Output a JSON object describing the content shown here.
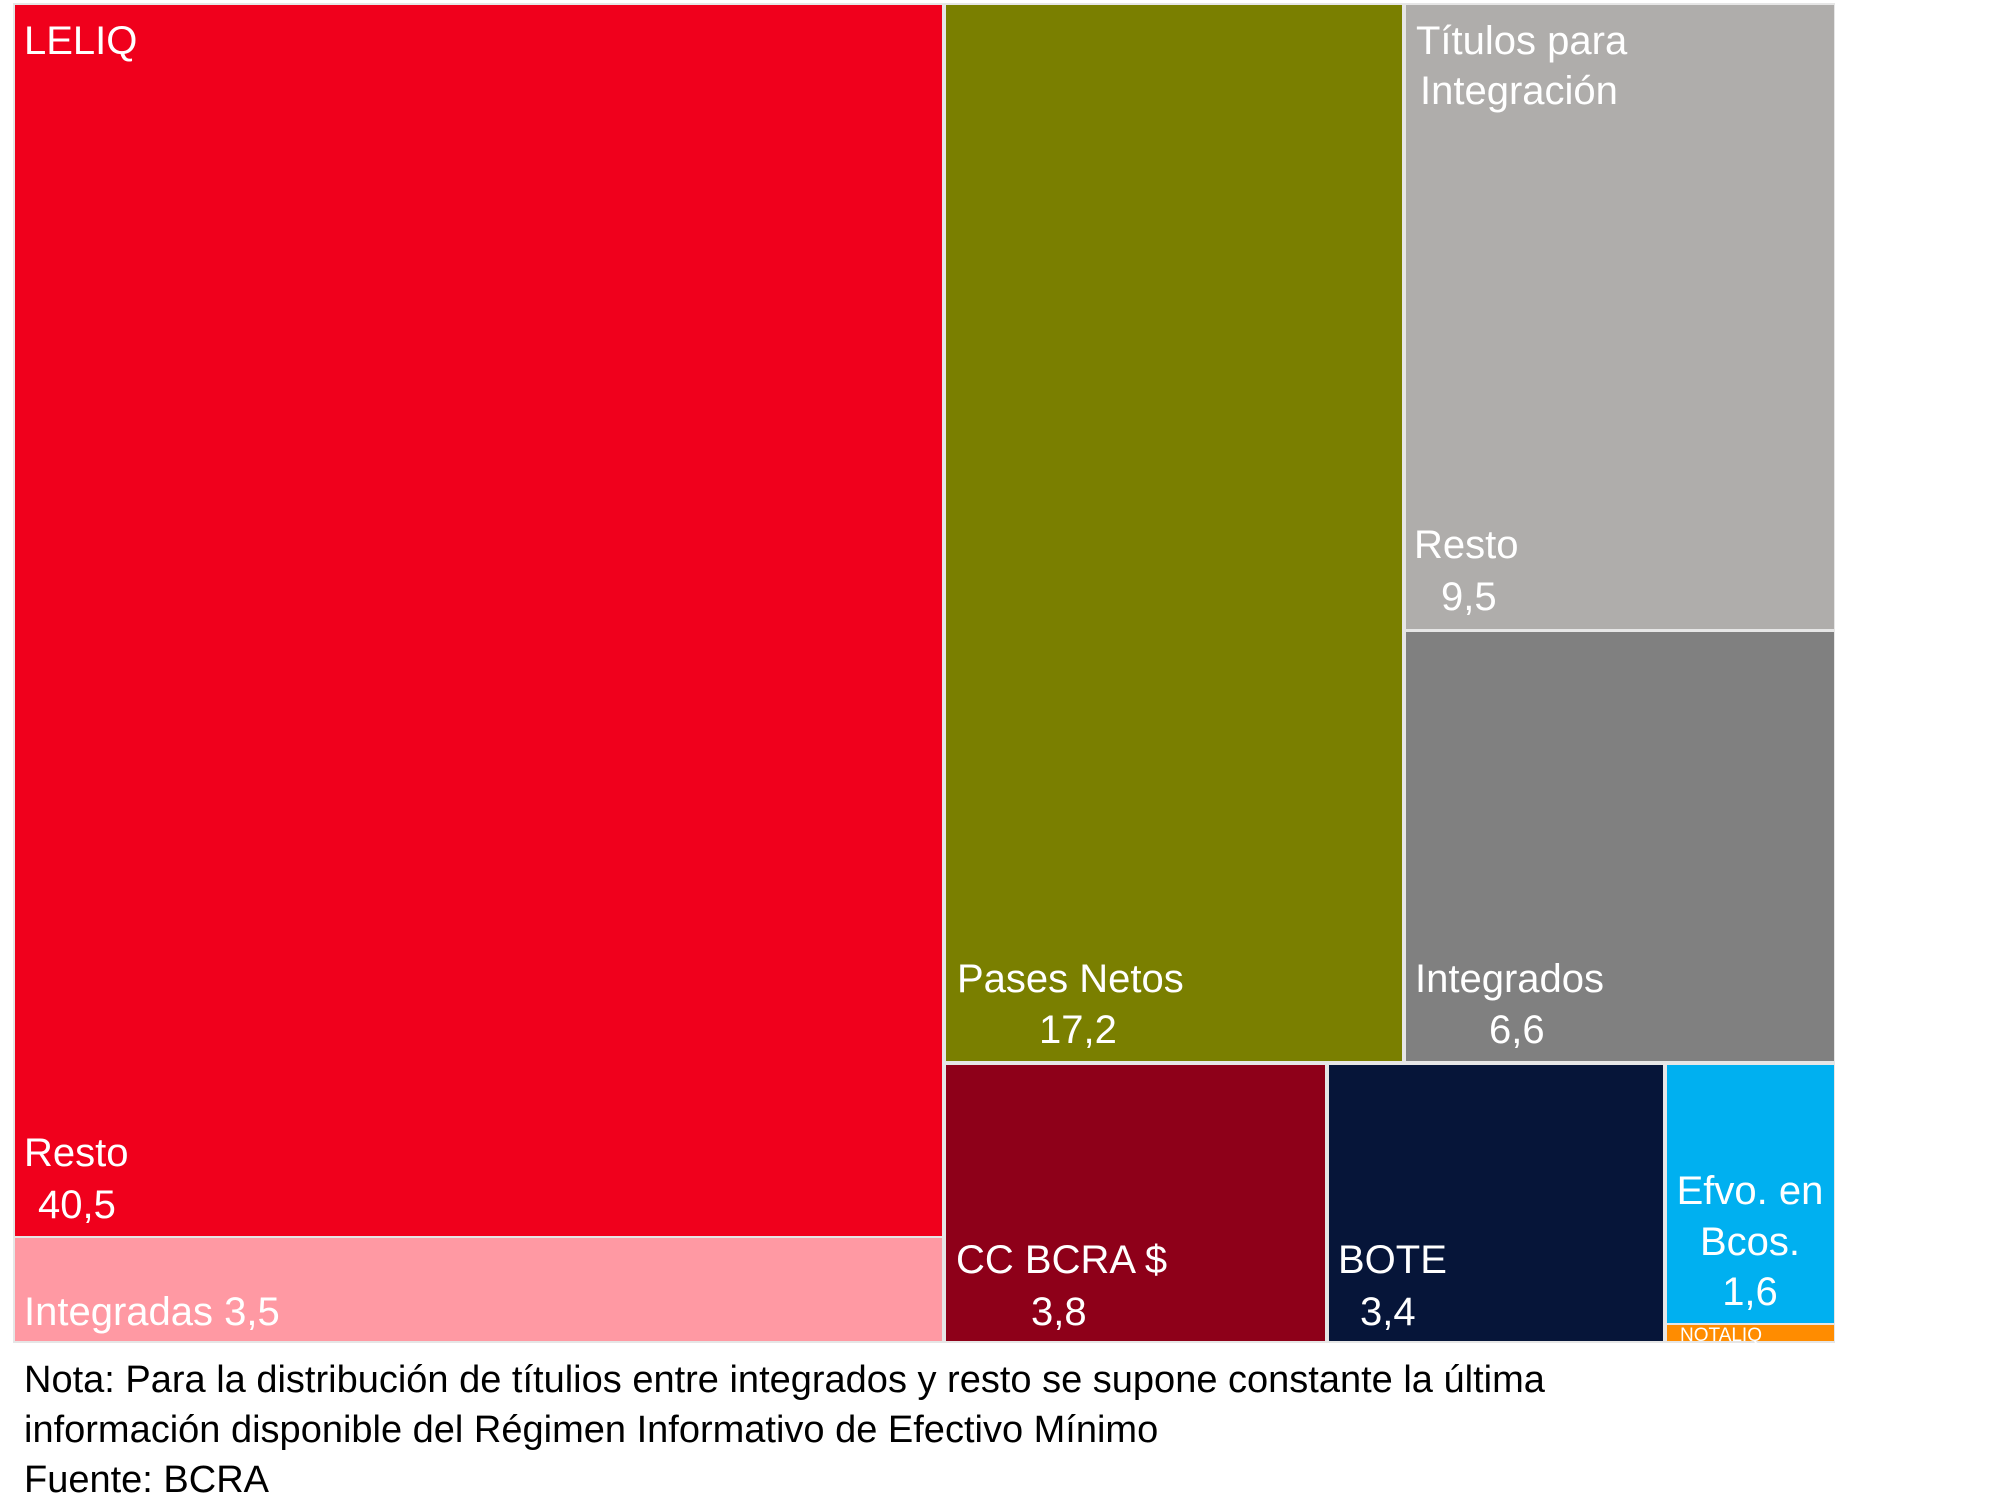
{
  "chart_data": {
    "type": "treemap",
    "groups": [
      {
        "name": "LELIQ",
        "color": "#f0001c",
        "items": [
          {
            "name": "Resto",
            "value": 40.5,
            "value_label": "40,5",
            "color": "#f0001c"
          },
          {
            "name": "Integradas",
            "value": 3.5,
            "value_label": "3,5",
            "color": "#ff99a3"
          }
        ]
      },
      {
        "name": "Pases Netos",
        "value": 17.2,
        "value_label": "17,2",
        "color": "#7a7f00"
      },
      {
        "name": "Títulos para Integración",
        "color": "#afadab",
        "items": [
          {
            "name": "Resto",
            "value": 9.5,
            "value_label": "9,5",
            "color": "#afadab"
          },
          {
            "name": "Integrados",
            "value": 6.6,
            "value_label": "6,6",
            "color": "#808080"
          }
        ]
      },
      {
        "name": "CC BCRA $",
        "value": 3.8,
        "value_label": "3,8",
        "color": "#8e0019"
      },
      {
        "name": "BOTE",
        "value": 3.4,
        "value_label": "3,4",
        "color": "#061539"
      },
      {
        "name": "Efvo. en Bcos.",
        "value": 1.6,
        "value_label": "1,6",
        "color": "#00b0f0"
      },
      {
        "name": "NOTALIQ",
        "value": null,
        "color": "#ff8c00"
      }
    ]
  },
  "labels": {
    "leliq_group": "LELIQ",
    "leliq_resto_name": "Resto",
    "leliq_resto_value": "40,5",
    "leliq_integradas": "Integradas 3,5",
    "pases_name": "Pases Netos",
    "pases_value": "17,2",
    "titulos_line1": "Títulos para",
    "titulos_line2": "Integración",
    "titulos_resto_name": "Resto",
    "titulos_resto_value": "9,5",
    "integrados_name": "Integrados",
    "integrados_value": "6,6",
    "cc_name": "CC BCRA $",
    "cc_value": "3,8",
    "bote_name": "BOTE",
    "bote_value": "3,4",
    "efvo_line1": "Efvo. en",
    "efvo_line2": "Bcos.",
    "efvo_value": "1,6",
    "notaliq": "NOTALIQ"
  },
  "notes": {
    "line1": "Nota: Para la distribución de títulios entre integrados y resto se supone constante la última",
    "line2": "información disponible del Régimen Informativo de Efectivo Mínimo",
    "source": "Fuente: BCRA"
  }
}
